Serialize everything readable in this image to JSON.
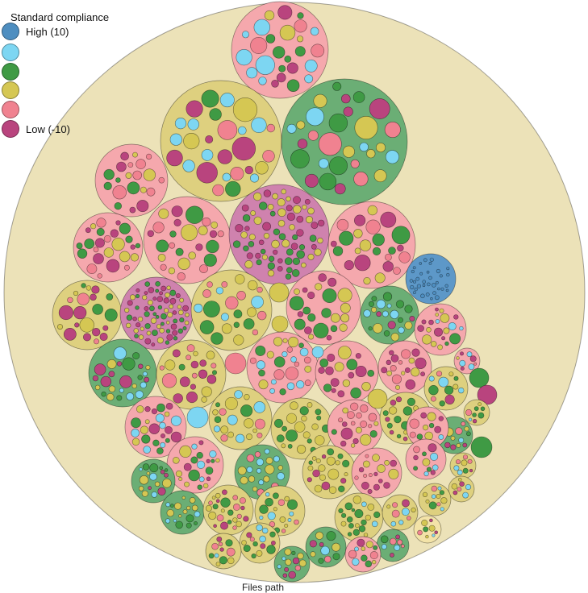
{
  "legend": {
    "title": "Standard compliance",
    "items": [
      {
        "label": "High (10)",
        "color": "#4e8ec0"
      },
      {
        "label": "",
        "color": "#7dd6f2"
      },
      {
        "label": "",
        "color": "#3f9a44"
      },
      {
        "label": "",
        "color": "#d5c753"
      },
      {
        "label": "",
        "color": "#f08290"
      },
      {
        "label": "Low (-10)",
        "color": "#b9447e"
      }
    ]
  },
  "bottom_label": "Files path",
  "chart_data": {
    "type": "circle-packing",
    "root_fill": "#ece2b8",
    "color_scale": {
      "high": 10,
      "low": -10
    },
    "group_fills": {
      "pink": "#f5a8ad",
      "olive": "#ded07f",
      "green": "#6bae75",
      "magenta": "#cf82ae",
      "blue": "#5d98c8"
    },
    "groups": [
      {
        "fill": "pink",
        "leaf_mix": [
          "green",
          "olive",
          "magenta",
          "pink",
          "blue"
        ]
      },
      {
        "fill": "olive",
        "leaf_mix": [
          "green",
          "olive",
          "magenta",
          "pink",
          "blue"
        ]
      },
      {
        "fill": "green",
        "leaf_mix": [
          "green",
          "olive",
          "pink",
          "blue",
          "magenta"
        ]
      },
      {
        "fill": "pink",
        "leaf_mix": [
          "magenta",
          "green",
          "olive",
          "pink"
        ]
      },
      {
        "fill": "pink",
        "leaf_mix": [
          "magenta",
          "olive",
          "green",
          "pink"
        ]
      },
      {
        "fill": "pink",
        "leaf_mix": [
          "olive",
          "magenta",
          "green",
          "pink"
        ]
      },
      {
        "fill": "magenta",
        "leaf_mix": [
          "magenta",
          "green",
          "olive"
        ]
      },
      {
        "fill": "pink",
        "leaf_mix": [
          "magenta",
          "olive",
          "green",
          "pink"
        ]
      },
      {
        "fill": "olive",
        "leaf_mix": [
          "olive",
          "green",
          "magenta",
          "pink"
        ]
      },
      {
        "fill": "magenta",
        "leaf_mix": [
          "magenta",
          "olive",
          "green"
        ]
      },
      {
        "fill": "olive",
        "leaf_mix": [
          "olive",
          "green",
          "blue",
          "pink"
        ]
      },
      {
        "fill": "pink",
        "leaf_mix": [
          "olive",
          "magenta",
          "green"
        ]
      },
      {
        "fill": "blue",
        "leaf_mix": [
          "blue"
        ]
      },
      {
        "fill": "green",
        "leaf_mix": [
          "green",
          "blue",
          "olive",
          "magenta"
        ]
      },
      {
        "fill": "pink",
        "leaf_mix": [
          "magenta",
          "olive",
          "green",
          "blue"
        ]
      },
      {
        "fill": "green",
        "leaf_mix": [
          "green",
          "blue",
          "olive",
          "magenta"
        ]
      },
      {
        "fill": "olive",
        "leaf_mix": [
          "olive",
          "green",
          "magenta",
          "pink"
        ]
      },
      {
        "fill": "pink",
        "leaf_mix": [
          "olive",
          "green",
          "pink",
          "blue"
        ]
      },
      {
        "fill": "pink",
        "leaf_mix": [
          "olive",
          "green",
          "magenta"
        ]
      },
      {
        "fill": "pink",
        "leaf_mix": [
          "olive",
          "magenta",
          "pink"
        ]
      },
      {
        "fill": "olive",
        "leaf_mix": [
          "olive",
          "green",
          "blue",
          "pink"
        ]
      },
      {
        "fill": "pink",
        "leaf_mix": [
          "olive",
          "magenta",
          "green",
          "blue"
        ]
      },
      {
        "fill": "olive",
        "leaf_mix": [
          "olive",
          "green"
        ]
      },
      {
        "fill": "green",
        "leaf_mix": [
          "blue",
          "pink",
          "olive"
        ]
      },
      {
        "fill": "pink",
        "leaf_mix": [
          "olive",
          "blue",
          "magenta",
          "green"
        ]
      },
      {
        "fill": "pink",
        "leaf_mix": [
          "magenta",
          "olive",
          "green",
          "pink"
        ]
      },
      {
        "fill": "olive",
        "leaf_mix": [
          "olive",
          "green",
          "magenta"
        ]
      },
      {
        "fill": "green",
        "leaf_mix": [
          "green",
          "olive",
          "blue",
          "magenta"
        ]
      },
      {
        "fill": "green",
        "leaf_mix": [
          "green",
          "olive",
          "blue"
        ]
      },
      {
        "fill": "olive",
        "leaf_mix": [
          "olive",
          "green",
          "magenta",
          "pink"
        ]
      },
      {
        "fill": "olive",
        "leaf_mix": [
          "olive",
          "green",
          "pink",
          "blue"
        ]
      },
      {
        "fill": "olive",
        "leaf_mix": [
          "olive",
          "green",
          "magenta"
        ]
      },
      {
        "fill": "pink",
        "leaf_mix": [
          "pink",
          "olive",
          "magenta"
        ]
      },
      {
        "fill": "olive",
        "leaf_mix": [
          "olive",
          "green",
          "blue"
        ]
      }
    ]
  }
}
